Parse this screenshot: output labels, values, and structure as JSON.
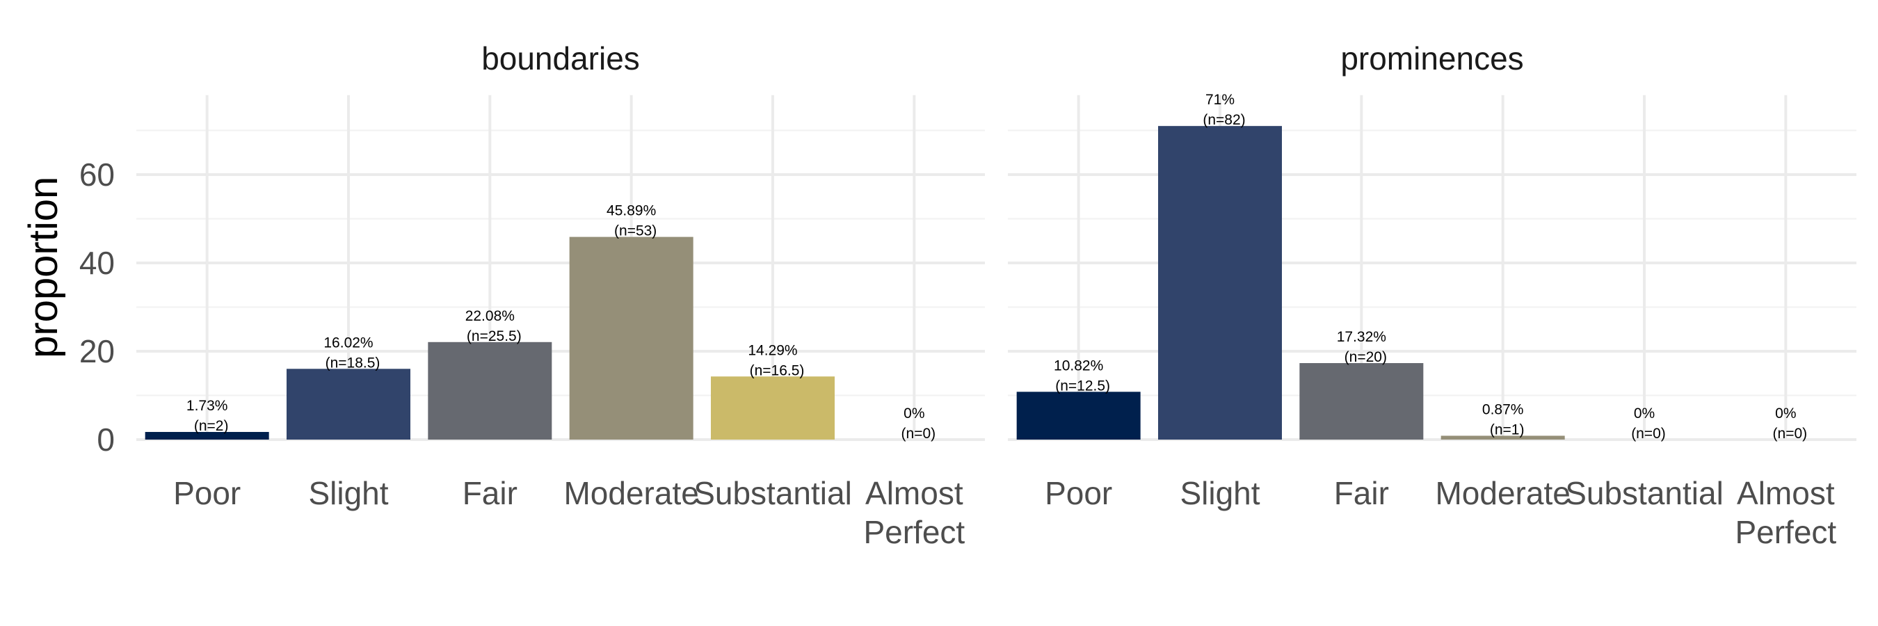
{
  "chart_data": {
    "type": "bar",
    "ylabel": "proportion",
    "xlabel": "",
    "ylim": [
      0,
      78
    ],
    "yticks": [
      0,
      20,
      40,
      60
    ],
    "grid": true,
    "categories": [
      "Poor",
      "Slight",
      "Fair",
      "Moderate",
      "Substantial",
      "Almost Perfect"
    ],
    "colors": [
      "#00204d",
      "#31446b",
      "#666970",
      "#958f78",
      "#cbba69",
      "#ffea46"
    ],
    "panels": [
      {
        "title": "boundaries",
        "values": [
          1.73,
          16.02,
          22.08,
          45.89,
          14.29,
          0
        ],
        "labels": [
          [
            "1.73%",
            "(n=2)"
          ],
          [
            "16.02%",
            "(n=18.5)"
          ],
          [
            "22.08%",
            "(n=25.5)"
          ],
          [
            "45.89%",
            "(n=53)"
          ],
          [
            "14.29%",
            "(n=16.5)"
          ],
          [
            "0%",
            "(n=0)"
          ]
        ]
      },
      {
        "title": "prominences",
        "values": [
          10.82,
          71,
          17.32,
          0.87,
          0,
          0
        ],
        "labels": [
          [
            "10.82%",
            "(n=12.5)"
          ],
          [
            "71%",
            "(n=82)"
          ],
          [
            "17.32%",
            "(n=20)"
          ],
          [
            "0.87%",
            "(n=1)"
          ],
          [
            "0%",
            "(n=0)"
          ],
          [
            "0%",
            "(n=0)"
          ]
        ]
      }
    ]
  }
}
